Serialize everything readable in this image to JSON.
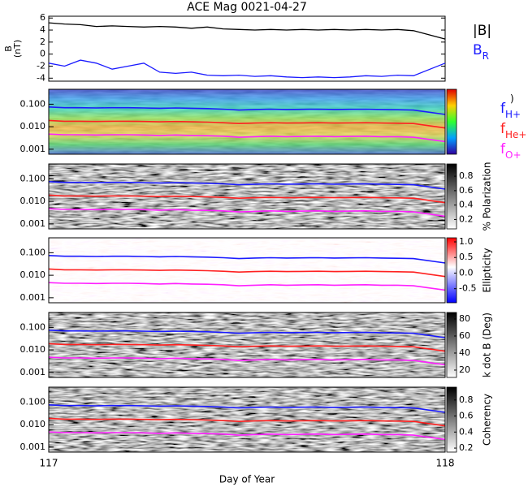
{
  "title": "ACE Mag 0021-04-27",
  "x_axis": {
    "label": "Day of Year",
    "xlim": [
      117,
      118
    ],
    "xticks": [
      117,
      118
    ]
  },
  "field_panel": {
    "type": "line",
    "ylabel": [
      "B",
      "(nT)"
    ],
    "ylim": [
      -4.5,
      6.3
    ],
    "yticks": [
      -4,
      -2,
      0,
      2,
      4,
      6
    ],
    "x": [
      117,
      117.04,
      117.08,
      117.12,
      117.16,
      117.2,
      117.24,
      117.28,
      117.32,
      117.36,
      117.4,
      117.44,
      117.48,
      117.52,
      117.56,
      117.6,
      117.64,
      117.68,
      117.72,
      117.76,
      117.8,
      117.84,
      117.88,
      117.92,
      118
    ],
    "series": [
      {
        "name": "|B|",
        "color": "#000000",
        "values": [
          5.2,
          5.0,
          4.9,
          4.6,
          4.7,
          4.6,
          4.5,
          4.6,
          4.5,
          4.3,
          4.5,
          4.2,
          4.1,
          4.0,
          4.1,
          4.0,
          4.1,
          4.0,
          4.1,
          4.0,
          4.1,
          4.0,
          4.1,
          3.9,
          2.5
        ]
      },
      {
        "name": "BR",
        "color": "#1a1aff",
        "values": [
          -1.5,
          -2.0,
          -1.0,
          -1.5,
          -2.5,
          -2.0,
          -1.5,
          -3.0,
          -3.2,
          -3.0,
          -3.5,
          -3.6,
          -3.5,
          -3.7,
          -3.6,
          -3.8,
          -3.9,
          -3.8,
          -3.9,
          -3.8,
          -3.6,
          -3.7,
          -3.5,
          -3.6,
          -1.5
        ]
      }
    ]
  },
  "frequency_lines": {
    "type": "line",
    "ylim": [
      0.0006,
      0.46
    ],
    "log": true,
    "yticks": [
      {
        "value": 0.001,
        "label": "0.001"
      },
      {
        "value": 0.01,
        "label": "0.010"
      },
      {
        "value": 0.1,
        "label": "0.100"
      }
    ],
    "series": [
      {
        "name": "fH+",
        "color": "#1a1aff",
        "values": [
          0.075,
          0.07,
          0.07,
          0.068,
          0.07,
          0.07,
          0.068,
          0.066,
          0.068,
          0.066,
          0.064,
          0.06,
          0.055,
          0.058,
          0.06,
          0.058,
          0.059,
          0.06,
          0.058,
          0.059,
          0.06,
          0.058,
          0.057,
          0.055,
          0.035
        ]
      },
      {
        "name": "fHe+",
        "color": "#ff2020",
        "values": [
          0.019,
          0.0175,
          0.0175,
          0.017,
          0.0175,
          0.0175,
          0.017,
          0.0165,
          0.017,
          0.0165,
          0.016,
          0.015,
          0.0138,
          0.0145,
          0.015,
          0.0145,
          0.0148,
          0.015,
          0.0145,
          0.0148,
          0.015,
          0.0145,
          0.0143,
          0.0138,
          0.0088
        ]
      },
      {
        "name": "fO+",
        "color": "#ff20ff",
        "values": [
          0.0047,
          0.0044,
          0.0044,
          0.0043,
          0.0044,
          0.0044,
          0.0043,
          0.0041,
          0.0043,
          0.0041,
          0.004,
          0.0038,
          0.0034,
          0.0036,
          0.0038,
          0.0036,
          0.0037,
          0.0038,
          0.0036,
          0.0037,
          0.0038,
          0.0036,
          0.0036,
          0.0034,
          0.0022
        ]
      }
    ]
  },
  "spectra": [
    {
      "colormap": "jet",
      "colorbar_label": ")"
    },
    {
      "colormap": "gray",
      "colorbar_label": "% Polarization",
      "clim": [
        0.07,
        0.97
      ],
      "cticks": [
        0.2,
        0.4,
        0.6,
        0.8
      ]
    },
    {
      "colormap": "redblue",
      "colorbar_label": "Ellipticity",
      "clim": [
        -0.95,
        1.13
      ],
      "cticks": [
        -0.5,
        {
          "value": 0,
          "label": "0.0"
        },
        0.5,
        {
          "value": 1,
          "label": "1.0"
        }
      ]
    },
    {
      "colormap": "gray",
      "colorbar_label": "k dot B (Deg)",
      "clim": [
        11.4,
        87.6
      ],
      "cticks": [
        20,
        40,
        60,
        80
      ]
    },
    {
      "colormap": "gray",
      "colorbar_label": "Coherency",
      "clim": [
        0.15,
        0.96
      ],
      "cticks": [
        0.2,
        0.4,
        0.6,
        0.8
      ]
    }
  ]
}
